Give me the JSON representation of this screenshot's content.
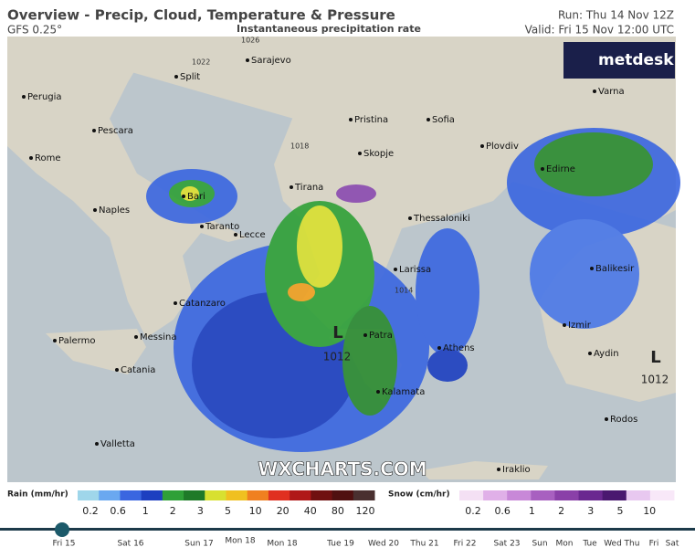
{
  "header": {
    "title": "Overview - Precip, Cloud, Temperature & Pressure",
    "model": "GFS 0.25°",
    "subtitle": "Instantaneous precipitation rate",
    "run": "Run: Thu 14 Nov 12Z",
    "valid": "Valid: Fri 15 Nov 12:00 UTC"
  },
  "logo": "metdesk",
  "watermark": "WXCHARTS.COM",
  "cities": [
    "Sarajevo",
    "Split",
    "Perugia",
    "Pristina",
    "Sofia",
    "Pescara",
    "Rome",
    "Skopje",
    "Plovdiv",
    "Varna",
    "Edirne",
    "Bari",
    "Tirana",
    "Naples",
    "Taranto",
    "Lecce",
    "Thessaloniki",
    "Larissa",
    "Balikesir",
    "Catanzaro",
    "Izmir",
    "Palermo",
    "Messina",
    "Patra",
    "Athens",
    "Aydin",
    "Catania",
    "Kalamata",
    "Rodos",
    "Valletta",
    "Iraklio"
  ],
  "pressure": {
    "lows": [
      {
        "symbol": "L",
        "value": 1012
      },
      {
        "symbol": "L",
        "value": 1012
      }
    ],
    "isobars": [
      1026,
      1022,
      1018,
      1014
    ]
  },
  "legend": {
    "rain": {
      "label": "Rain (mm/hr)",
      "values": [
        0.2,
        0.6,
        1,
        2,
        3,
        5,
        10,
        20,
        40,
        80,
        120
      ]
    },
    "snow": {
      "label": "Snow (cm/hr)",
      "values": [
        0.2,
        0.6,
        1,
        2,
        3,
        5,
        10
      ]
    }
  },
  "timeline": [
    "Fri 15",
    "Sat 16",
    "Sun 17",
    "Mon 18",
    "Mon 18",
    "Tue 19",
    "Wed 20",
    "Thu 21",
    "Fri 22",
    "Sat 23",
    "Sun",
    "Mon",
    "Tue",
    "Wed",
    "Thu",
    "Fri",
    "Sat"
  ]
}
